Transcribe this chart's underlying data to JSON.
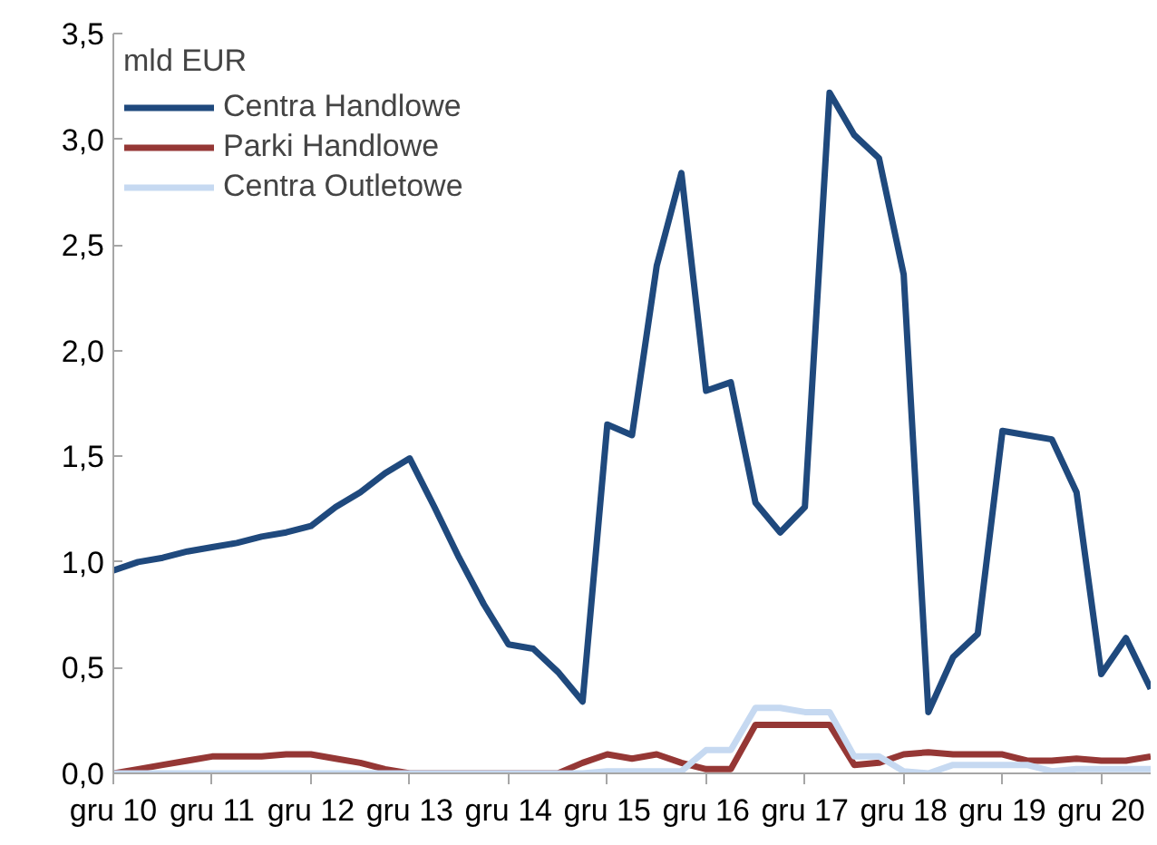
{
  "chart_data": {
    "type": "line",
    "categories": [
      "gru 10",
      null,
      null,
      null,
      "gru 11",
      null,
      null,
      null,
      "gru 12",
      null,
      null,
      null,
      "gru 13",
      null,
      null,
      null,
      "gru 14",
      null,
      null,
      null,
      "gru 15",
      null,
      null,
      null,
      "gru 16",
      null,
      null,
      null,
      "gru 17",
      null,
      null,
      null,
      "gru 18",
      null,
      null,
      null,
      "gru 19",
      null,
      null,
      null,
      "gru 20",
      null,
      null
    ],
    "series": [
      {
        "name": "Centra Handlowe",
        "color": "#1f497d",
        "values": [
          0.96,
          1.0,
          1.02,
          1.05,
          1.07,
          1.09,
          1.12,
          1.14,
          1.17,
          1.26,
          1.33,
          1.42,
          1.49,
          1.26,
          1.02,
          0.8,
          0.61,
          0.59,
          0.48,
          0.34,
          1.65,
          1.6,
          2.4,
          2.84,
          1.81,
          1.85,
          1.28,
          1.14,
          1.26,
          3.22,
          3.02,
          2.91,
          2.36,
          0.29,
          0.55,
          0.66,
          1.62,
          1.6,
          1.58,
          1.33,
          0.47,
          0.64,
          0.4
        ]
      },
      {
        "name": "Parki Handlowe",
        "color": "#953735",
        "values": [
          0.0,
          0.02,
          0.04,
          0.06,
          0.08,
          0.08,
          0.08,
          0.09,
          0.09,
          0.07,
          0.05,
          0.02,
          0.0,
          0.0,
          0.0,
          0.0,
          0.0,
          0.0,
          0.0,
          0.05,
          0.09,
          0.07,
          0.09,
          0.05,
          0.02,
          0.02,
          0.23,
          0.23,
          0.23,
          0.23,
          0.04,
          0.05,
          0.09,
          0.1,
          0.09,
          0.09,
          0.09,
          0.06,
          0.06,
          0.07,
          0.06,
          0.06,
          0.08
        ]
      },
      {
        "name": "Centra Outletowe",
        "color": "#c6d9f1",
        "values": [
          0.0,
          0.0,
          0.0,
          0.0,
          0.0,
          0.0,
          0.0,
          0.0,
          0.0,
          0.0,
          0.0,
          0.0,
          0.0,
          0.0,
          0.0,
          0.0,
          0.0,
          0.0,
          0.0,
          0.0,
          0.01,
          0.01,
          0.01,
          0.01,
          0.11,
          0.11,
          0.31,
          0.31,
          0.29,
          0.29,
          0.08,
          0.08,
          0.01,
          0.0,
          0.04,
          0.04,
          0.04,
          0.04,
          0.01,
          0.02,
          0.02,
          0.02,
          0.02
        ]
      }
    ],
    "legend_title": "mld EUR",
    "ylim": [
      0,
      3.5
    ],
    "yticks": [
      {
        "value": 0,
        "label": "0,0"
      },
      {
        "value": 0.5,
        "label": "0,5"
      },
      {
        "value": 1,
        "label": "1,0"
      },
      {
        "value": 1.5,
        "label": "1,5"
      },
      {
        "value": 2,
        "label": "2,0"
      },
      {
        "value": 2.5,
        "label": "2,5"
      },
      {
        "value": 3,
        "label": "3,0"
      },
      {
        "value": 3.5,
        "label": "3,5"
      }
    ],
    "grid": false,
    "legend": "top left"
  }
}
